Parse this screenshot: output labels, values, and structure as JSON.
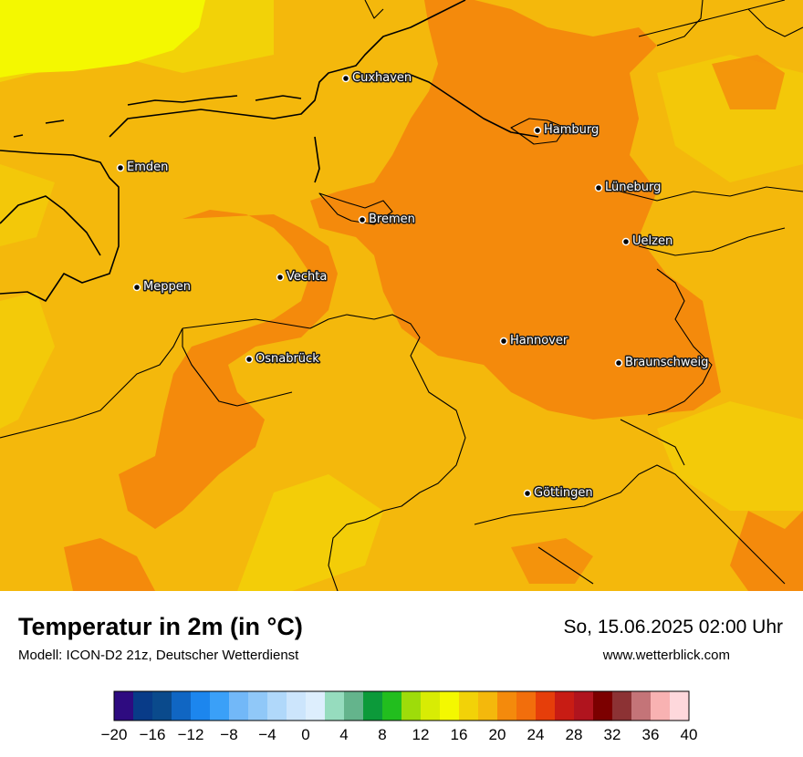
{
  "title": "Temperatur in 2m (in °C)",
  "model": "Modell: ICON-D2 21z, Deutscher Wetterdienst",
  "valid_time": "So, 15.06.2025 02:00 Uhr",
  "website": "www.wetterblick.com",
  "cities": [
    {
      "name": "Cuxhaven"
    },
    {
      "name": "Hamburg"
    },
    {
      "name": "Emden"
    },
    {
      "name": "Lüneburg"
    },
    {
      "name": "Bremen"
    },
    {
      "name": "Uelzen"
    },
    {
      "name": "Vechta"
    },
    {
      "name": "Meppen"
    },
    {
      "name": "Hannover"
    },
    {
      "name": "Osnabrück"
    },
    {
      "name": "Braunschweig"
    },
    {
      "name": "Göttingen"
    }
  ],
  "colorbar": {
    "tick_labels": [
      "−20",
      "−16",
      "−12",
      "−8",
      "−4",
      "0",
      "4",
      "8",
      "12",
      "16",
      "20",
      "24",
      "28",
      "32",
      "36",
      "40"
    ],
    "min": -20,
    "max": 40,
    "step": 2,
    "colors": [
      "#2e0b80",
      "#083b88",
      "#0a4a8c",
      "#1066c3",
      "#1c86ee",
      "#3aa0f8",
      "#72b8f8",
      "#90c8f8",
      "#b0d8fa",
      "#cce5fc",
      "#ddeefd",
      "#96dcbe",
      "#64b48c",
      "#0c9a3a",
      "#22be1e",
      "#9edc0a",
      "#d8ec04",
      "#f4f800",
      "#f2d208",
      "#f4b80c",
      "#f48a0c",
      "#f26e0c",
      "#e63e0a",
      "#c81c14",
      "#b0141e",
      "#7c0000",
      "#8c3234",
      "#c47478",
      "#f8b2b2",
      "#fed8dc"
    ]
  },
  "map_colors": {
    "t16_18": "#f4f800",
    "t18_20": "#f2d208",
    "t20_22": "#f4b80c",
    "t22_24": "#f48a0c"
  }
}
